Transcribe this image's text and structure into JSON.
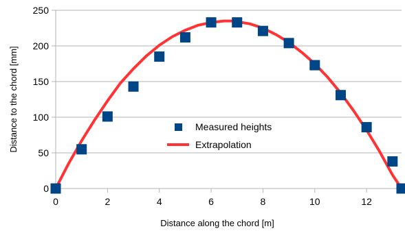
{
  "chart_data": {
    "type": "scatter",
    "xlabel": "Distance along the chord [m]",
    "ylabel": "Distance to the chord [mm]",
    "xlim": [
      0,
      13.35
    ],
    "ylim": [
      0,
      250
    ],
    "xticks": [
      0,
      2,
      4,
      6,
      8,
      10,
      12
    ],
    "yticks": [
      0,
      50,
      100,
      150,
      200,
      250
    ],
    "grid": "horizontal",
    "legend_position": "center",
    "series": [
      {
        "name": "Measured heights",
        "kind": "scatter",
        "marker": "square",
        "color": "#004586",
        "x": [
          0,
          1,
          2,
          3,
          4,
          5,
          6,
          7,
          8,
          9,
          10,
          11,
          12,
          13,
          13.35
        ],
        "y": [
          0,
          55,
          101,
          143,
          185,
          212,
          233,
          233,
          221,
          204,
          173,
          131,
          86,
          38,
          0
        ]
      },
      {
        "name": "Extrapolation",
        "kind": "line",
        "color": "#ff3333",
        "x": [
          0,
          0.5,
          1,
          1.5,
          2,
          2.5,
          3,
          3.5,
          4,
          4.5,
          5,
          5.5,
          6,
          6.5,
          6.8,
          7,
          7.5,
          8,
          8.5,
          9,
          9.5,
          10,
          10.5,
          11,
          11.5,
          12,
          12.5,
          13,
          13.35
        ],
        "y": [
          0,
          35,
          67,
          96,
          123,
          148,
          168,
          186,
          201,
          213,
          222,
          229,
          233,
          235,
          235,
          234,
          231,
          225,
          216,
          205,
          191,
          175,
          156,
          134,
          109,
          82,
          52,
          19,
          0
        ]
      }
    ]
  }
}
